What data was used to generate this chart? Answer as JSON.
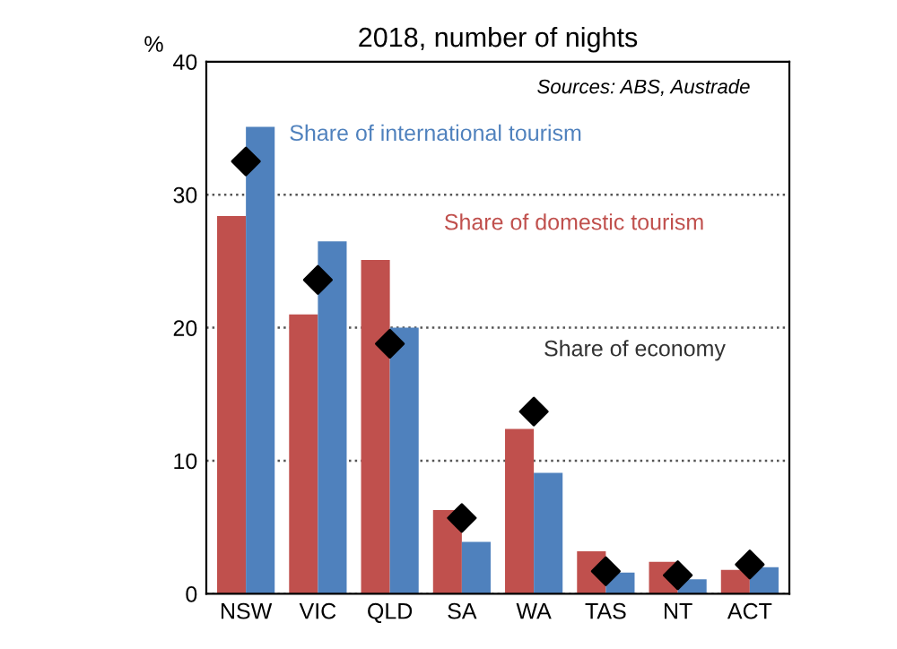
{
  "chart_data": {
    "type": "bar",
    "title": "2018, number of nights",
    "ylabel": "%",
    "categories": [
      "NSW",
      "VIC",
      "QLD",
      "SA",
      "WA",
      "TAS",
      "NT",
      "ACT"
    ],
    "series": [
      {
        "name": "Share of domestic tourism",
        "color": "#c0504d",
        "values": [
          28.4,
          21,
          25.1,
          6.3,
          12.4,
          3.2,
          2.4,
          1.8
        ]
      },
      {
        "name": "Share of international tourism",
        "color": "#4f81bd",
        "values": [
          35.1,
          26.5,
          20,
          3.9,
          9.1,
          1.6,
          1.1,
          2.0
        ]
      },
      {
        "name": "Share of economy",
        "type": "scatter",
        "color": "#000000",
        "marker": "diamond",
        "values": [
          32.5,
          23.6,
          18.8,
          5.7,
          13.7,
          1.7,
          1.4,
          2.2
        ]
      }
    ],
    "annotations": [
      "Sources: ABS, Austrade"
    ],
    "ylim": [
      0,
      40
    ],
    "yticks": [
      0,
      10,
      20,
      30,
      40
    ],
    "grid": "y",
    "legend": false
  }
}
